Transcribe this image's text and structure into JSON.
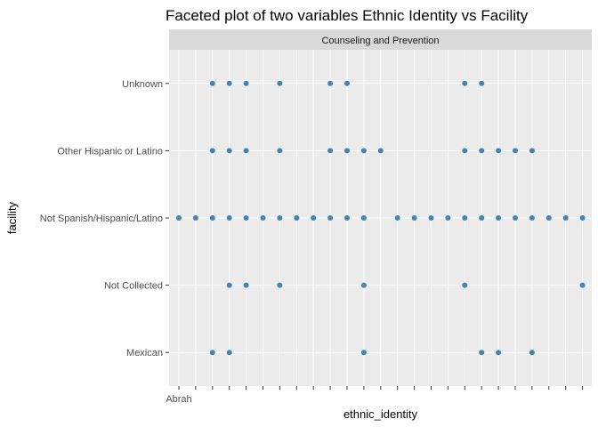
{
  "chart_data": {
    "type": "scatter",
    "title": "Faceted plot of two variables Ethnic Identity vs Facility",
    "facet_label": "Counseling and Prevention",
    "xlabel": "ethnic_identity",
    "ylabel": "facility",
    "y_categories": [
      "Mexican",
      "Not Collected",
      "Not Spanish/Hispanic/Latino",
      "Other Hispanic or Latino",
      "Unknown"
    ],
    "x_category_count": 25,
    "x_first_tick_label": "Abrah",
    "point_color": "#4682b4",
    "panel_background": "#ebebeb",
    "strip_background": "#d9d9d9",
    "grid": true,
    "points": [
      {
        "y": "Unknown",
        "x": [
          3,
          4,
          5,
          7,
          10,
          11,
          18,
          19
        ]
      },
      {
        "y": "Other Hispanic or Latino",
        "x": [
          3,
          4,
          5,
          7,
          10,
          11,
          12,
          13,
          18,
          19,
          20,
          21,
          22
        ]
      },
      {
        "y": "Not Spanish/Hispanic/Latino",
        "x": [
          1,
          2,
          3,
          4,
          5,
          6,
          7,
          8,
          9,
          10,
          11,
          12,
          14,
          15,
          16,
          17,
          18,
          19,
          20,
          21,
          22,
          23,
          24,
          25
        ]
      },
      {
        "y": "Not Collected",
        "x": [
          4,
          5,
          7,
          12,
          18,
          25
        ]
      },
      {
        "y": "Mexican",
        "x": [
          3,
          4,
          12,
          19,
          20,
          22
        ]
      }
    ]
  }
}
